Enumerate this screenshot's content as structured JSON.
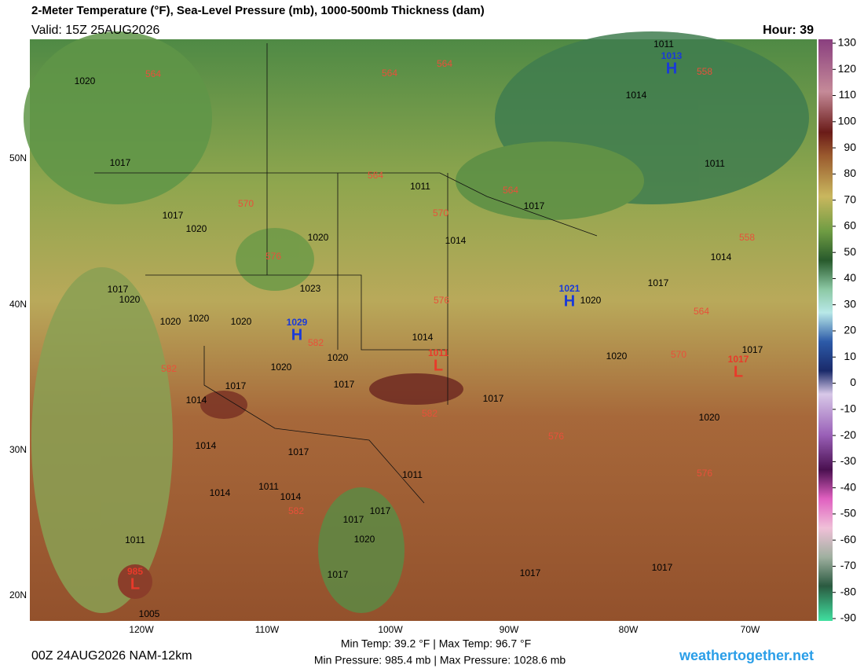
{
  "header": {
    "title": "2-Meter Temperature (°F), Sea-Level Pressure (mb), 1000-500mb Thickness (dam)",
    "valid": "Valid: 15Z 25AUG2026",
    "hour": "Hour: 39"
  },
  "colorbar": {
    "ticks": [
      130,
      120,
      110,
      100,
      90,
      80,
      70,
      60,
      50,
      40,
      30,
      20,
      10,
      0,
      -10,
      -20,
      -30,
      -40,
      -50,
      -60,
      -70,
      -80,
      -90
    ]
  },
  "lat_labels": [
    "50N",
    "40N",
    "30N",
    "20N"
  ],
  "lon_labels": [
    "120W",
    "110W",
    "100W",
    "90W",
    "80W",
    "70W"
  ],
  "isobar_labels": [
    1011,
    1020,
    1014,
    1017,
    1011,
    1011,
    1017,
    1017,
    1020,
    1020,
    1014,
    1014,
    1017,
    1017,
    1020,
    1023,
    1020,
    1020,
    1020,
    1020,
    1014,
    1017,
    1020,
    1020,
    1020,
    1017,
    1017,
    1014,
    1017,
    1020,
    1014,
    1017,
    1011,
    1014,
    1011,
    1014,
    1017,
    1017,
    1020,
    1017,
    1011,
    1005,
    1017,
    1017
  ],
  "thickness_labels": [
    564,
    564,
    564,
    558,
    564,
    564,
    570,
    570,
    576,
    576,
    558,
    564,
    570,
    582,
    582,
    582,
    576,
    576,
    582
  ],
  "centers": [
    {
      "pressure": 1013,
      "symbol": "H"
    },
    {
      "pressure": 1021,
      "symbol": "H"
    },
    {
      "pressure": 1029,
      "symbol": "H"
    },
    {
      "pressure": 1011,
      "symbol": "L"
    },
    {
      "pressure": 1017,
      "symbol": "L"
    },
    {
      "pressure": 985,
      "symbol": "L"
    }
  ],
  "footer": {
    "run": "00Z 24AUG2026 NAM-12km",
    "temp": "Min Temp:  39.2 °F | Max Temp:  96.7 °F",
    "pressure": "Min Pressure: 985.4 mb | Max Pressure: 1028.6 mb",
    "site": "weathertogether.net"
  }
}
